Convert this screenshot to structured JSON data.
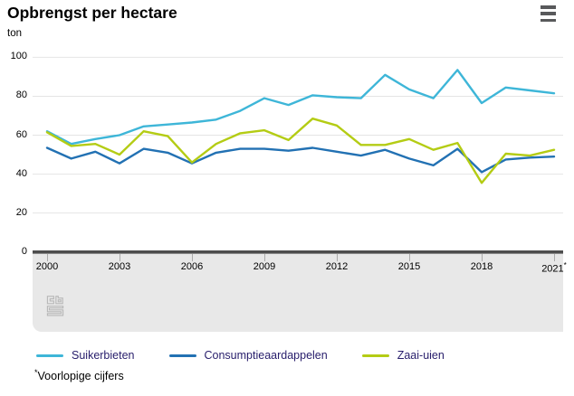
{
  "header": {
    "title": "Opbrengst per hectare",
    "unit": "ton"
  },
  "menu": {
    "icon": "hamburger-menu-icon"
  },
  "chart_data": {
    "type": "line",
    "title": "Opbrengst per hectare",
    "ylabel": "ton",
    "xlabel": "",
    "ylim": [
      0,
      100
    ],
    "yticks": [
      0,
      20,
      40,
      60,
      80,
      100
    ],
    "xtick_labels": [
      "2000",
      "2003",
      "2006",
      "2009",
      "2012",
      "2015",
      "2018",
      "2021*"
    ],
    "xtick_years": [
      2000,
      2003,
      2006,
      2009,
      2012,
      2015,
      2018,
      2021
    ],
    "grid": true,
    "legend_position": "bottom",
    "x": [
      2000,
      2001,
      2002,
      2003,
      2004,
      2005,
      2006,
      2007,
      2008,
      2009,
      2010,
      2011,
      2012,
      2013,
      2014,
      2015,
      2016,
      2017,
      2018,
      2019,
      2020,
      2021
    ],
    "series": [
      {
        "name": "Suikerbieten",
        "color": "#3eb6d8",
        "values": [
          62,
          55.5,
          58,
          60,
          64.5,
          65.5,
          66.5,
          68,
          72.5,
          79,
          75.5,
          80.5,
          79.5,
          79,
          91,
          83.5,
          79,
          93.5,
          76.5,
          84.5,
          83,
          81.5
        ]
      },
      {
        "name": "Consumptieaardappelen",
        "color": "#2271b3",
        "values": [
          53.5,
          48,
          51.5,
          45.5,
          53,
          51,
          45.5,
          51,
          53,
          53,
          52,
          53.5,
          51.5,
          49.5,
          52.5,
          48,
          44.5,
          53,
          41,
          47.5,
          48.5,
          49
        ]
      },
      {
        "name": "Zaai-uien",
        "color": "#b4cc14",
        "values": [
          61.5,
          54.5,
          55.5,
          50,
          62,
          59.5,
          46,
          55.5,
          61,
          62.5,
          57.5,
          68.5,
          65,
          55,
          55,
          58,
          52.5,
          56,
          35.5,
          50.5,
          49.5,
          52.5
        ]
      }
    ]
  },
  "footnote": {
    "marker": "*",
    "text": "Voorlopige cijfers"
  },
  "branding": {
    "logo": "cbs-logo"
  },
  "colors": {
    "axis_bar": "#4d4d4d",
    "gridline": "#e4e4e4",
    "band": "#e8e8e8",
    "tick": "#ababab",
    "menu_icon": "#58595b",
    "logo": "#b8b8b8",
    "legend_text": "#271d6b",
    "text": "#000000"
  }
}
